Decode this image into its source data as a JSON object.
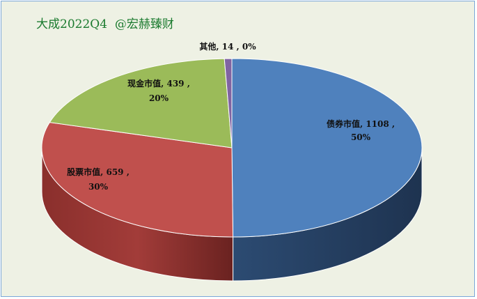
{
  "chart_data": {
    "type": "pie",
    "title": "大成2022Q4  @宏赫臻财",
    "slices": [
      {
        "name": "债券市值",
        "value": 1108,
        "percent": "50%",
        "color": "#4f81bd",
        "label_line1": "债券市值, 1108 ,",
        "label_line2": "50%"
      },
      {
        "name": "股票市值",
        "value": 659,
        "percent": "30%",
        "color": "#c0504d",
        "label_line1": "股票市值, 659 ,",
        "label_line2": "30%"
      },
      {
        "name": "现金市值",
        "value": 439,
        "percent": "20%",
        "color": "#9bbb59",
        "label_line1": "现金市值, 439 ,",
        "label_line2": "20%"
      },
      {
        "name": "其他",
        "value": 14,
        "percent": "0%",
        "color": "#8064a2",
        "label_line1": "其他, 14 , 0%",
        "label_line2": ""
      }
    ]
  }
}
